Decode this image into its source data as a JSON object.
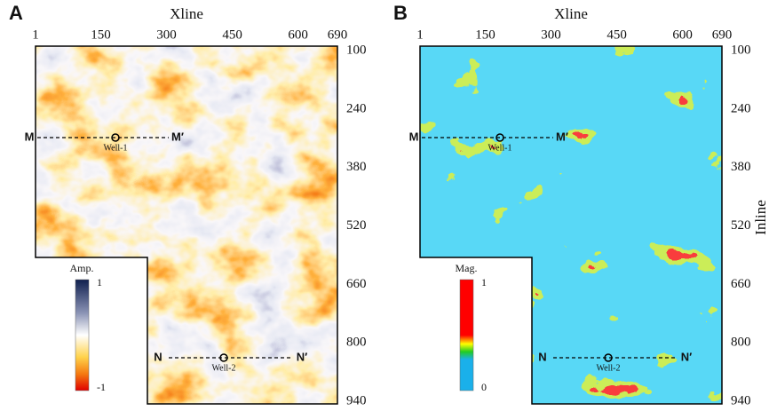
{
  "panels": [
    {
      "label": "A",
      "x_axis_title": "Xline",
      "xticks": [
        1,
        150,
        300,
        450,
        600,
        690
      ],
      "yticks": [
        100,
        240,
        380,
        520,
        660,
        800,
        940
      ],
      "colorbar": {
        "title": "Amp.",
        "max_label": "1",
        "min_label": "-1"
      },
      "sections": [
        {
          "start": "M",
          "end": "M′",
          "well": "Well-1"
        },
        {
          "start": "N",
          "end": "N′",
          "well": "Well-2"
        }
      ]
    },
    {
      "label": "B",
      "x_axis_title": "Xline",
      "y_axis_title": "Inline",
      "xticks": [
        1,
        150,
        300,
        450,
        600,
        690
      ],
      "yticks": [
        100,
        240,
        380,
        520,
        660,
        800,
        940
      ],
      "colorbar": {
        "title": "Mag.",
        "max_label": "1",
        "min_label": "0"
      },
      "sections": [
        {
          "start": "M",
          "end": "M′",
          "well": "Well-1"
        },
        {
          "start": "N",
          "end": "N′",
          "well": "Well-2"
        }
      ]
    }
  ]
}
